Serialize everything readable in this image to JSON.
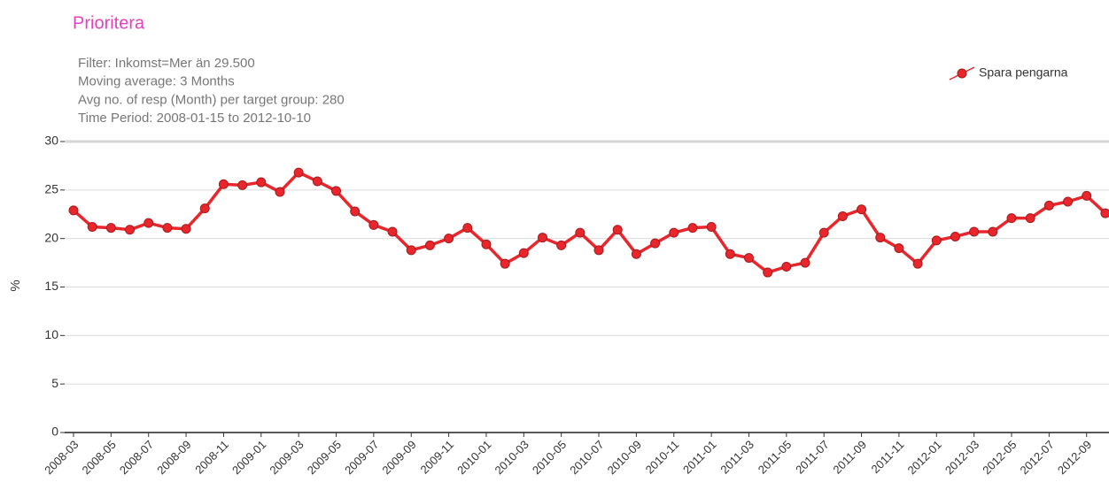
{
  "chart_data": {
    "type": "line",
    "title": "Prioritera",
    "subtitle": [
      "Filter: Inkomst=Mer än 29.500",
      "Moving average: 3 Months",
      "Avg no. of resp (Month) per target group: 280",
      "Time Period: 2008-01-15 to 2012-10-10"
    ],
    "y_label": "%",
    "categories": [
      "2008-03",
      null,
      "2008-05",
      null,
      "2008-07",
      null,
      "2008-09",
      null,
      "2008-11",
      null,
      "2009-01",
      null,
      "2009-03",
      null,
      "2009-05",
      null,
      "2009-07",
      null,
      "2009-09",
      null,
      "2009-11",
      null,
      "2010-01",
      null,
      "2010-03",
      null,
      "2010-05",
      null,
      "2010-07",
      null,
      "2010-09",
      null,
      "2010-11",
      null,
      "2011-01",
      null,
      "2011-03",
      null,
      "2011-05",
      null,
      "2011-07",
      null,
      "2011-09",
      null,
      "2011-11",
      null,
      "2012-01",
      null,
      "2012-03",
      null,
      "2012-05",
      null,
      "2012-07",
      null,
      "2012-09",
      null
    ],
    "series": [
      {
        "name": "Spara pengarna",
        "color": "#e8262b",
        "values": [
          22.9,
          21.2,
          21.1,
          20.9,
          21.6,
          21.1,
          21.0,
          23.1,
          25.6,
          25.5,
          25.8,
          24.8,
          26.8,
          25.9,
          24.9,
          22.8,
          21.4,
          20.7,
          18.8,
          19.3,
          20.0,
          21.1,
          19.4,
          17.4,
          18.5,
          20.1,
          19.3,
          20.6,
          18.8,
          20.9,
          18.4,
          19.5,
          20.6,
          21.1,
          21.2,
          18.4,
          18.0,
          16.5,
          17.1,
          17.5,
          20.6,
          22.3,
          23.0,
          20.1,
          19.0,
          17.4,
          19.8,
          20.2,
          20.7,
          20.7,
          22.1,
          22.1,
          23.4,
          23.8,
          24.4,
          22.6
        ]
      }
    ],
    "ylim": [
      0,
      30
    ],
    "yticks": [
      0,
      5,
      10,
      15,
      20,
      25,
      30
    ],
    "grid": true,
    "legend": "top-right"
  }
}
